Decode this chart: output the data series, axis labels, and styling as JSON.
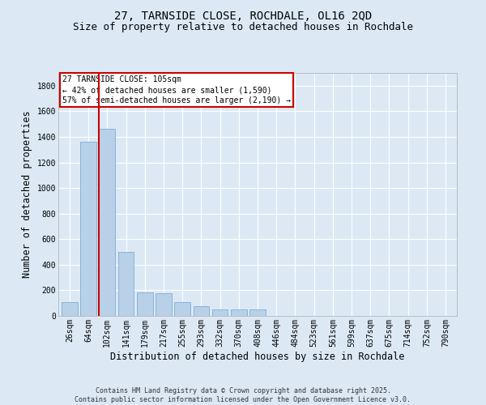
{
  "title_line1": "27, TARNSIDE CLOSE, ROCHDALE, OL16 2QD",
  "title_line2": "Size of property relative to detached houses in Rochdale",
  "xlabel": "Distribution of detached houses by size in Rochdale",
  "ylabel": "Number of detached properties",
  "categories": [
    "26sqm",
    "64sqm",
    "102sqm",
    "141sqm",
    "179sqm",
    "217sqm",
    "255sqm",
    "293sqm",
    "332sqm",
    "370sqm",
    "408sqm",
    "446sqm",
    "484sqm",
    "523sqm",
    "561sqm",
    "599sqm",
    "637sqm",
    "675sqm",
    "714sqm",
    "752sqm",
    "790sqm"
  ],
  "values": [
    110,
    1360,
    1460,
    500,
    185,
    175,
    110,
    75,
    50,
    50,
    50,
    0,
    0,
    0,
    0,
    0,
    0,
    0,
    0,
    0,
    0
  ],
  "bar_color": "#b8d0e8",
  "bar_edge_color": "#7aafd4",
  "vline_color": "#cc0000",
  "vline_x_index": 2,
  "annotation_text": "27 TARNSIDE CLOSE: 105sqm\n← 42% of detached houses are smaller (1,590)\n57% of semi-detached houses are larger (2,190) →",
  "annotation_box_color": "#cc0000",
  "ylim": [
    0,
    1900
  ],
  "yticks": [
    0,
    200,
    400,
    600,
    800,
    1000,
    1200,
    1400,
    1600,
    1800
  ],
  "background_color": "#dce9f5",
  "grid_color": "#ffffff",
  "title_fontsize": 10,
  "subtitle_fontsize": 9,
  "tick_fontsize": 7,
  "label_fontsize": 8.5,
  "footer_text": "Contains HM Land Registry data © Crown copyright and database right 2025.\nContains public sector information licensed under the Open Government Licence v3.0."
}
